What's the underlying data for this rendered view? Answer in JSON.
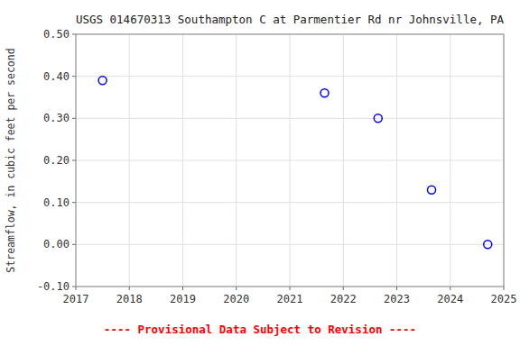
{
  "chart_data": {
    "type": "scatter",
    "title": "USGS 014670313 Southampton C at Parmentier Rd nr Johnsville, PA",
    "y_label": "Streamflow, in cubic feet per second",
    "x": [
      2017.5,
      2021.65,
      2022.65,
      2023.65,
      2024.7
    ],
    "values": [
      0.39,
      0.36,
      0.3,
      0.13,
      0.0
    ],
    "color": "blue",
    "marker": "open-circle",
    "xlim": [
      2017,
      2025
    ],
    "xticks": [
      2017,
      2018,
      2019,
      2020,
      2021,
      2022,
      2023,
      2024,
      2025
    ],
    "ylim": [
      -0.1,
      0.5
    ],
    "yticks": [
      {
        "value": -0.1,
        "label": "-0.10"
      },
      {
        "value": 0.0,
        "label": "0.00"
      },
      {
        "value": 0.1,
        "label": "0.10"
      },
      {
        "value": 0.2,
        "label": "0.20"
      },
      {
        "value": 0.3,
        "label": "0.30"
      },
      {
        "value": 0.4,
        "label": "0.40"
      },
      {
        "value": 0.5,
        "label": "0.50"
      }
    ],
    "grid": true,
    "annotations": [
      {
        "text": "---- Provisional Data Subject to Revision ----",
        "color": "red"
      }
    ]
  }
}
